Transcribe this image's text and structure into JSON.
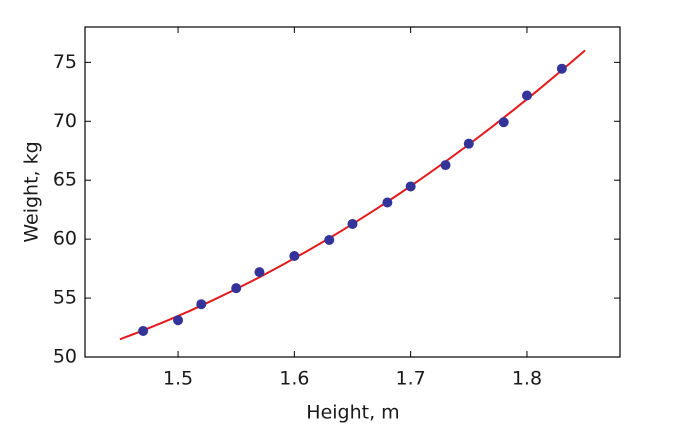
{
  "chart_data": {
    "type": "scatter",
    "x_label": "Height, m",
    "y_label": "Weight,  kg",
    "xlim": [
      1.42,
      1.88
    ],
    "ylim": [
      50,
      78
    ],
    "xticks": [
      1.5,
      1.6,
      1.7,
      1.8
    ],
    "yticks": [
      50,
      55,
      60,
      65,
      70,
      75
    ],
    "series": [
      {
        "type": "scatter",
        "color": "#333399",
        "x": [
          1.47,
          1.5,
          1.52,
          1.55,
          1.57,
          1.6,
          1.63,
          1.65,
          1.68,
          1.7,
          1.73,
          1.75,
          1.78,
          1.8,
          1.83
        ],
        "values": [
          52.21,
          53.12,
          54.48,
          55.84,
          57.2,
          58.57,
          59.93,
          61.29,
          63.11,
          64.47,
          66.28,
          68.1,
          69.92,
          72.19,
          74.46
        ]
      },
      {
        "type": "line",
        "color": "#e31a1c",
        "x": [
          1.45,
          1.47,
          1.49,
          1.51,
          1.53,
          1.55,
          1.57,
          1.59,
          1.61,
          1.63,
          1.65,
          1.67,
          1.69,
          1.71,
          1.73,
          1.75,
          1.77,
          1.79,
          1.81,
          1.83,
          1.85
        ],
        "values": [
          51.5,
          52.25,
          53.06,
          53.91,
          54.82,
          55.77,
          56.77,
          57.83,
          58.93,
          60.08,
          61.28,
          62.53,
          63.83,
          65.18,
          66.58,
          68.03,
          69.53,
          71.08,
          72.68,
          74.33,
          76.02
        ]
      }
    ]
  }
}
